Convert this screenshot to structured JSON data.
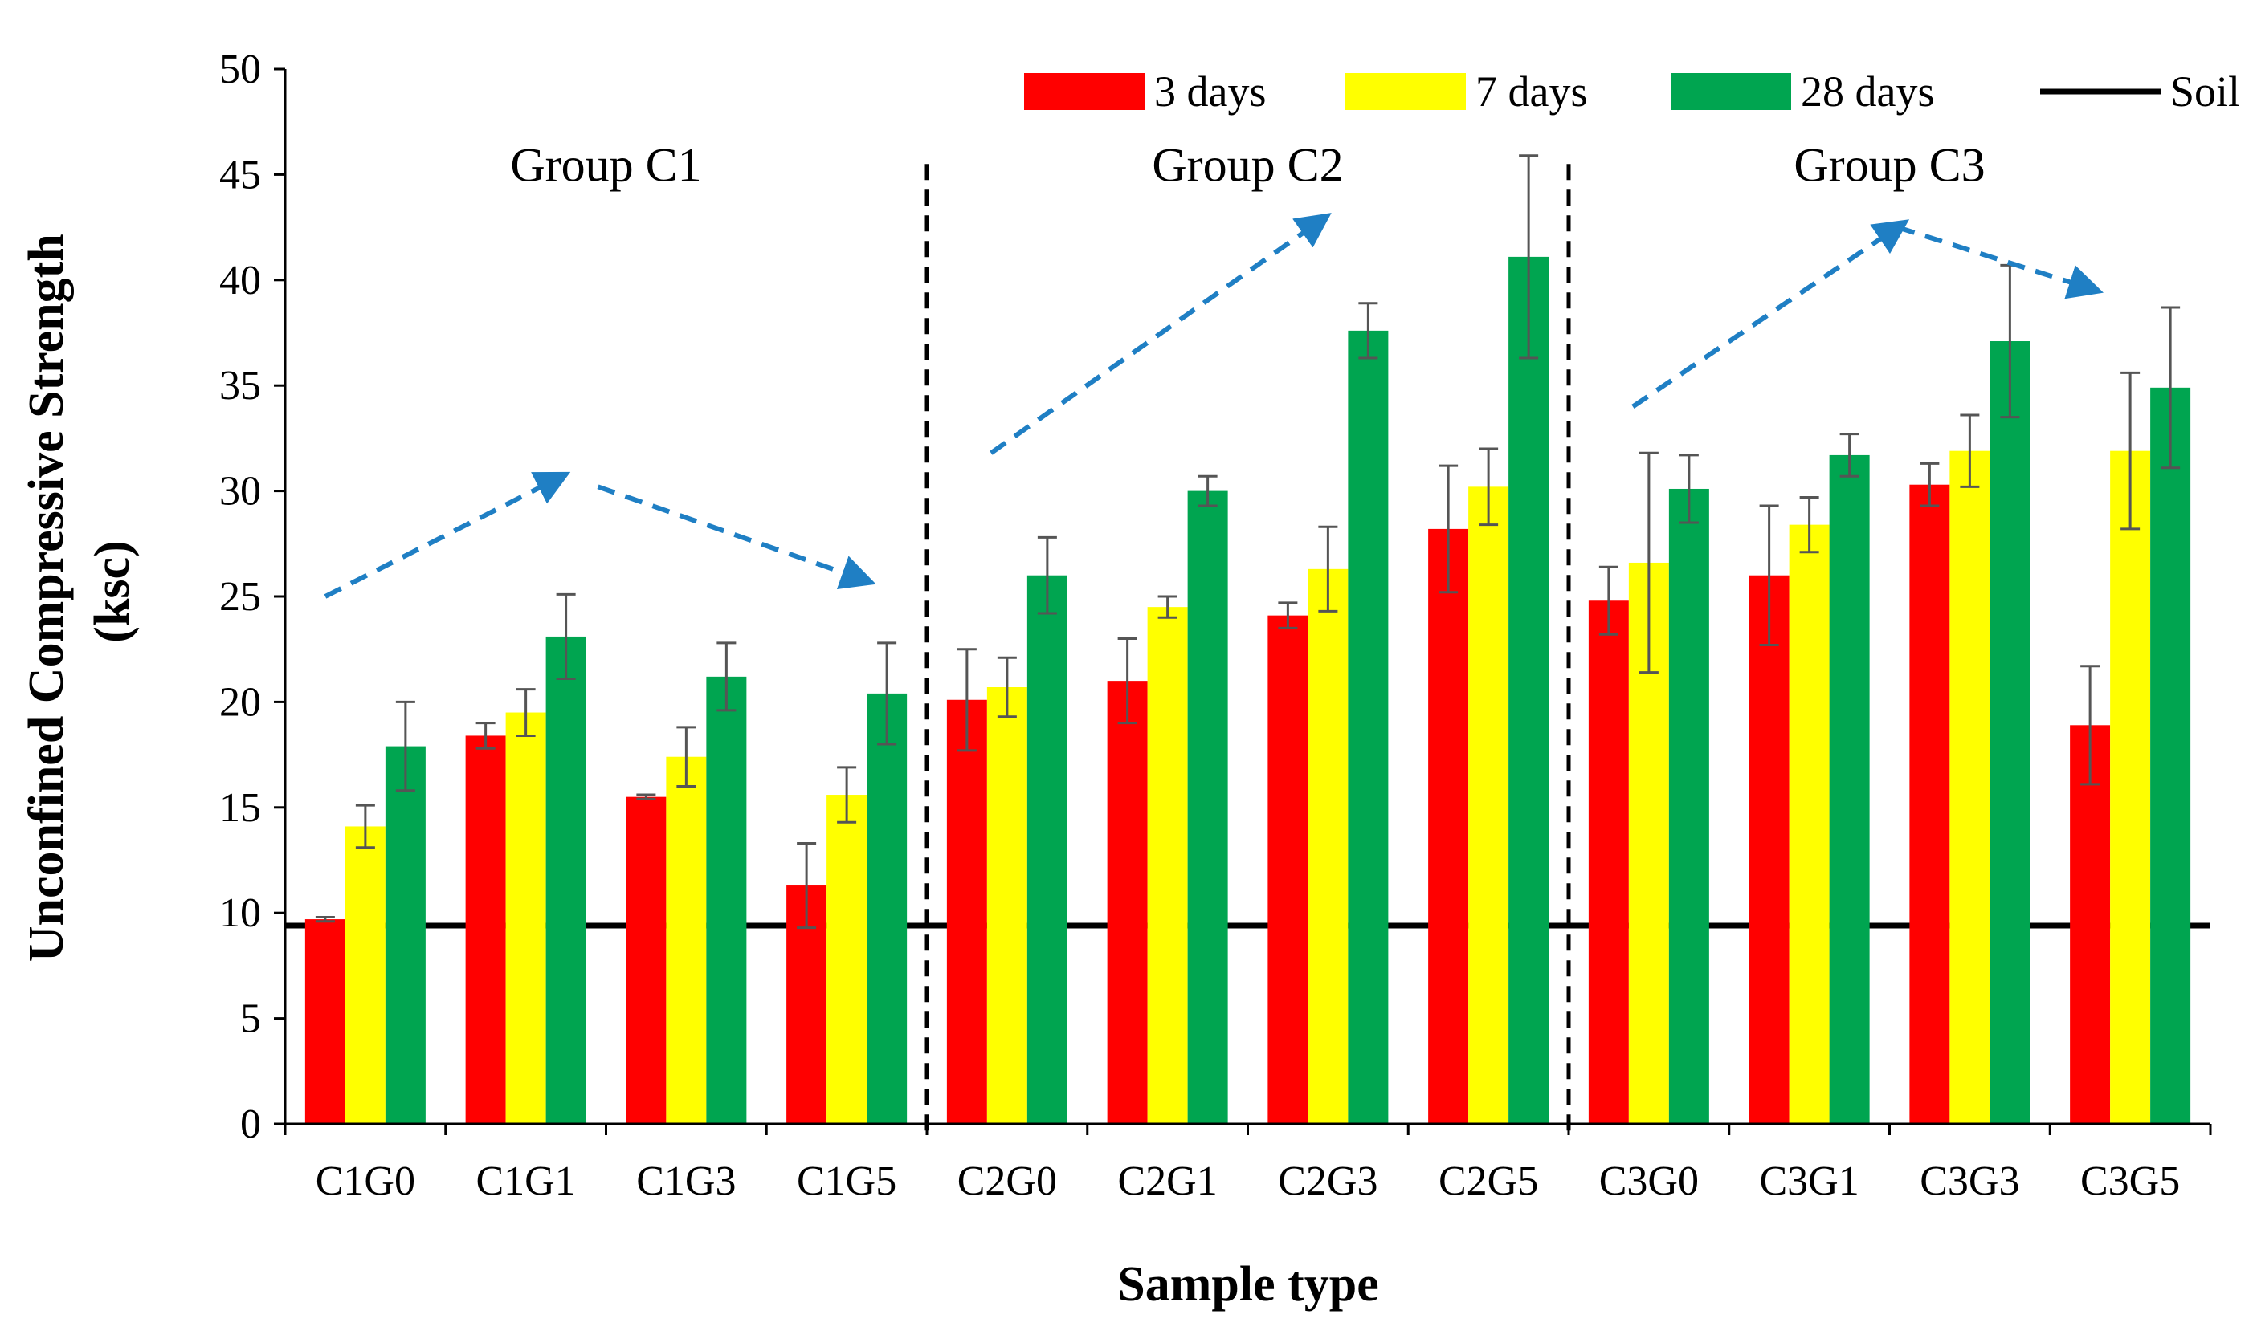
{
  "chart_data": {
    "type": "bar",
    "title": "",
    "xlabel": "Sample type",
    "ylabel": "Unconfined Compressive Strength (ksc)",
    "ylabel_lines": [
      "Unconfined Compressive Strength",
      "(ksc)"
    ],
    "ylim": [
      0,
      50
    ],
    "yticks": [
      0,
      5,
      10,
      15,
      20,
      25,
      30,
      35,
      40,
      45,
      50
    ],
    "grid": false,
    "legend_position": "top-right",
    "categories": [
      "C1G0",
      "C1G1",
      "C1G3",
      "C1G5",
      "C2G0",
      "C2G1",
      "C2G3",
      "C2G5",
      "C3G0",
      "C3G1",
      "C3G3",
      "C3G5"
    ],
    "series": [
      {
        "name": "3 days",
        "color": "#ff0000",
        "values": [
          9.7,
          18.4,
          15.5,
          11.3,
          20.1,
          21.0,
          24.1,
          28.2,
          24.8,
          26.0,
          30.3,
          18.9
        ],
        "errors": [
          0.1,
          0.6,
          0.1,
          2.0,
          2.4,
          2.0,
          0.6,
          3.0,
          1.6,
          3.3,
          1.0,
          2.8
        ]
      },
      {
        "name": "7 days",
        "color": "#ffff00",
        "values": [
          14.1,
          19.5,
          17.4,
          15.6,
          20.7,
          24.5,
          26.3,
          30.2,
          26.6,
          28.4,
          31.9,
          31.9
        ],
        "errors": [
          1.0,
          1.1,
          1.4,
          1.3,
          1.4,
          0.5,
          2.0,
          1.8,
          5.2,
          1.3,
          1.7,
          3.7
        ]
      },
      {
        "name": "28 days",
        "color": "#00a550",
        "values": [
          17.9,
          23.1,
          21.2,
          20.4,
          26.0,
          30.0,
          37.6,
          41.1,
          30.1,
          31.7,
          37.1,
          34.9
        ],
        "errors": [
          2.1,
          2.0,
          1.6,
          2.4,
          1.8,
          0.7,
          1.3,
          4.8,
          1.6,
          1.0,
          3.6,
          3.8
        ]
      }
    ],
    "reference_line": {
      "name": "Soil",
      "value": 9.4,
      "color": "#000000"
    },
    "group_dividers_after": [
      "C1G5",
      "C2G5"
    ],
    "groups": [
      {
        "label": "Group C1",
        "label_y": 44.7,
        "first": "C1G0",
        "last": "C1G5"
      },
      {
        "label": "Group C2",
        "label_y": 44.7,
        "first": "C2G0",
        "last": "C2G5"
      },
      {
        "label": "Group C3",
        "label_y": 44.7,
        "first": "C3G0",
        "last": "C3G5"
      }
    ],
    "trend_arrows": [
      {
        "points": [
          [
            0.5,
            25.0
          ],
          [
            3.4,
            30.6
          ]
        ],
        "color": "#1f7fc4"
      },
      {
        "points": [
          [
            3.9,
            30.2
          ],
          [
            7.2,
            25.8
          ]
        ],
        "color": "#1f7fc4"
      },
      {
        "points": [
          [
            8.8,
            31.8
          ],
          [
            12.9,
            42.8
          ]
        ],
        "color": "#1f7fc4"
      },
      {
        "points": [
          [
            16.8,
            34.0
          ],
          [
            20.1,
            42.5
          ]
        ],
        "color": "#1f7fc4"
      },
      {
        "points": [
          [
            20.1,
            42.5
          ],
          [
            22.5,
            39.6
          ]
        ],
        "color": "#1f7fc4"
      }
    ]
  }
}
